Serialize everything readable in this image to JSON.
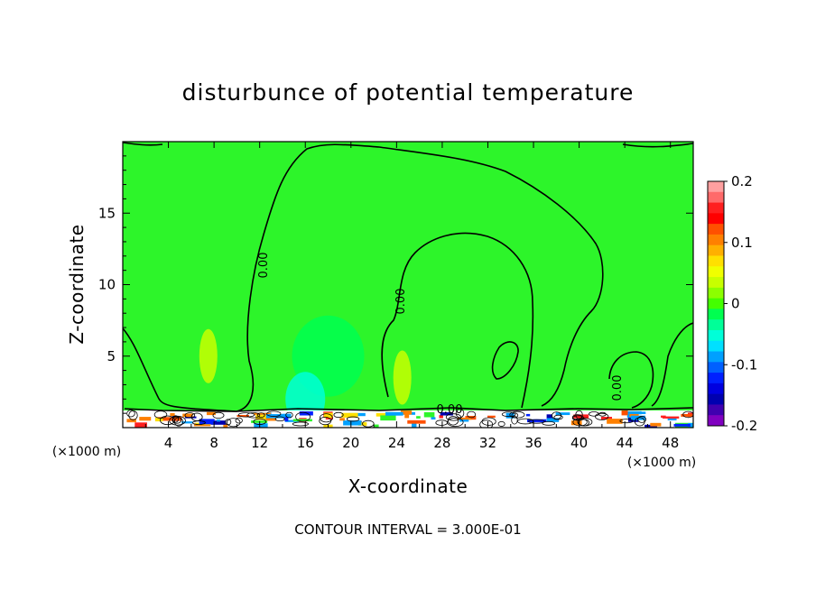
{
  "chart_data": {
    "type": "heatmap",
    "title": "disturbunce of potential temperature",
    "xlabel": "X-coordinate",
    "ylabel": "Z-coordinate",
    "x_unit_label": "(×1000 m)",
    "x_unit_label_right": "(×1000 m)",
    "xlim": [
      0,
      50
    ],
    "ylim": [
      0,
      20
    ],
    "x_ticks": [
      4,
      8,
      12,
      16,
      20,
      24,
      28,
      32,
      36,
      40,
      44,
      48
    ],
    "x_tick_labels": [
      "4",
      "8",
      "12",
      "16",
      "20",
      "24",
      "28",
      "32",
      "36",
      "40",
      "44",
      "48"
    ],
    "y_ticks": [
      5,
      10,
      15
    ],
    "y_tick_labels": [
      "5",
      "10",
      "15"
    ],
    "contour_interval_text": "CONTOUR INTERVAL = 3.000E-01",
    "contour_label": "0.00",
    "colorbar": {
      "min": -0.2,
      "max": 0.2,
      "ticks": [
        0.2,
        0.1,
        0,
        -0.1,
        -0.2
      ],
      "tick_labels": [
        "0.2",
        "0.1",
        "0",
        "-0.1",
        "-0.2"
      ],
      "colors": [
        "#ffa0a0",
        "#ff6a6a",
        "#ff2020",
        "#ff0000",
        "#ff5000",
        "#ff8000",
        "#ffb000",
        "#ffe000",
        "#f0ff00",
        "#c8ff00",
        "#8cff00",
        "#44ff00",
        "#00ff50",
        "#00ff98",
        "#00ffd8",
        "#00e0ff",
        "#00a0ff",
        "#0060ff",
        "#0020ff",
        "#0000e0",
        "#0000b0",
        "#4000b0",
        "#8000c0"
      ]
    },
    "background_value": 0,
    "features": [
      {
        "name": "cool-anomaly",
        "x": 18,
        "z": 5,
        "value": -0.02
      },
      {
        "name": "cool-anomaly-low",
        "x": 16,
        "z": 2,
        "value": -0.06
      },
      {
        "name": "warm-anomaly",
        "x": 24.5,
        "z": 3.5,
        "value": 0.03
      },
      {
        "name": "warm-anomaly",
        "x": 7.5,
        "z": 5,
        "value": 0.03
      },
      {
        "name": "surface-layer-mix",
        "x": 25,
        "z": 0.5,
        "value": 0.15
      },
      {
        "name": "surface-layer-cold",
        "x": 30,
        "z": 0.8,
        "value": -0.15
      }
    ]
  }
}
